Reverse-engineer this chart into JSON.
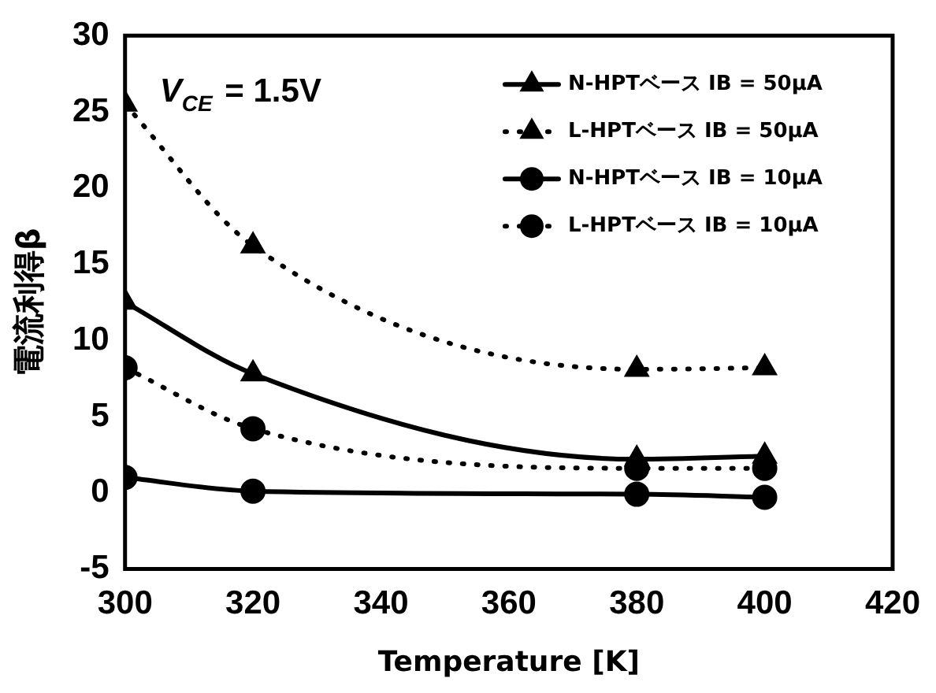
{
  "chart_data": {
    "type": "line",
    "xlabel": "Temperature [K]",
    "ylabel": "電流利得β",
    "annotations": [
      "V$_{CE}$ = 1.5V"
    ],
    "x": [
      300,
      320,
      380,
      400
    ],
    "series": [
      {
        "name": "N-HPTベース IB = 50μA",
        "color": "#000000",
        "marker": "triangle",
        "line_style": "solid",
        "values": [
          12.5,
          7.8,
          2.2,
          2.4
        ]
      },
      {
        "name": "L-HPTベース IB = 50μA",
        "color": "#000000",
        "marker": "triangle",
        "line_style": "dotted",
        "values": [
          25.5,
          16.2,
          8.1,
          8.2
        ]
      },
      {
        "name": "N-HPTベース IB = 10μA",
        "color": "#000000",
        "marker": "circle",
        "line_style": "solid",
        "values": [
          1.0,
          0.1,
          -0.1,
          -0.3
        ]
      },
      {
        "name": "L-HPTベース IB = 10μA",
        "color": "#000000",
        "marker": "circle",
        "line_style": "dotted",
        "values": [
          8.2,
          4.2,
          1.6,
          1.6
        ]
      }
    ],
    "xlim": [
      300,
      420
    ],
    "xticks": [
      300,
      320,
      340,
      360,
      380,
      400,
      420
    ],
    "ylim": [
      -5,
      30
    ],
    "yticks": [
      -5,
      0,
      5,
      10,
      15,
      20,
      25,
      30
    ],
    "grid": false,
    "legend": "top right"
  }
}
